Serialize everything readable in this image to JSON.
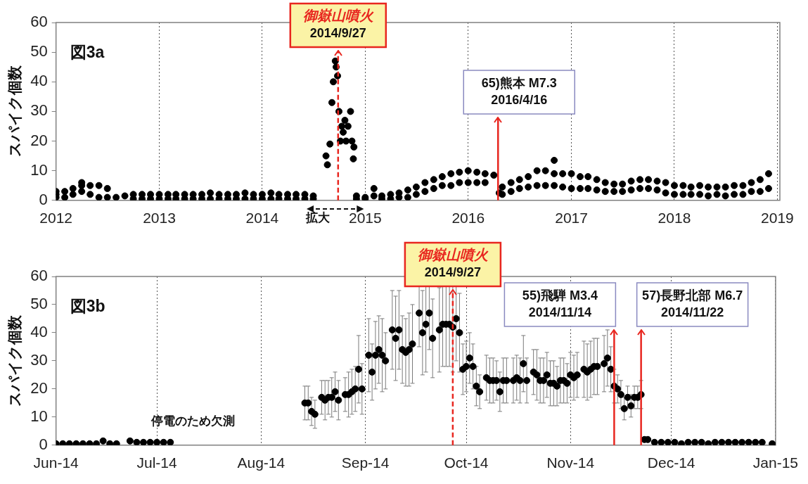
{
  "chart_data": [
    {
      "type": "scatter",
      "title": "図3a",
      "ylabel": "スパイク個数",
      "marker": "circle",
      "grid": "x",
      "xlim": [
        "2012-01-01",
        "2019-01-10"
      ],
      "xticks": [
        {
          "value": "2012-01-01",
          "label": "2012"
        },
        {
          "value": "2013-01-01",
          "label": "2013"
        },
        {
          "value": "2014-01-01",
          "label": "2014"
        },
        {
          "value": "2015-01-01",
          "label": "2015"
        },
        {
          "value": "2016-01-01",
          "label": "2016"
        },
        {
          "value": "2017-01-01",
          "label": "2017"
        },
        {
          "value": "2018-01-01",
          "label": "2018"
        },
        {
          "value": "2019-01-01",
          "label": "2019"
        }
      ],
      "ylim": [
        0,
        60
      ],
      "yticks": [
        0,
        10,
        20,
        30,
        40,
        50,
        60
      ],
      "series": [
        {
          "color": "#000000",
          "x": [
            "2012-01",
            "2012-01",
            "2012-01",
            "2012-02",
            "2012-02",
            "2012-03",
            "2012-03",
            "2012-04",
            "2012-04",
            "2012-04",
            "2012-05",
            "2012-05",
            "2012-06",
            "2012-06",
            "2012-07",
            "2012-07",
            "2012-08",
            "2012-09",
            "2012-10",
            "2012-10",
            "2012-11",
            "2012-11",
            "2012-12",
            "2012-12",
            "2013-01",
            "2013-01",
            "2013-02",
            "2013-02",
            "2013-03",
            "2013-03",
            "2013-04",
            "2013-04",
            "2013-05",
            "2013-05",
            "2013-06",
            "2013-06",
            "2013-07",
            "2013-07",
            "2013-08",
            "2013-08",
            "2013-09",
            "2013-09",
            "2013-10",
            "2013-10",
            "2013-11",
            "2013-11",
            "2013-12",
            "2013-12",
            "2014-01",
            "2014-01",
            "2014-02",
            "2014-02",
            "2014-03",
            "2014-03",
            "2014-04",
            "2014-04",
            "2014-05",
            "2014-05",
            "2014-06",
            "2014-06",
            "2014-07",
            "2014-07",
            "2014-08-15",
            "2014-08-20",
            "2014-08-29",
            "2014-09-05",
            "2014-09-10",
            "2014-09-17",
            "2014-09-20",
            "2014-09-25",
            "2014-09-30",
            "2014-10-05",
            "2014-10-10",
            "2014-10-15",
            "2014-10-21",
            "2014-10-25",
            "2014-11-01",
            "2014-11-10",
            "2014-11-15",
            "2014-11-20",
            "2014-11-22",
            "2014-12",
            "2014-12",
            "2015-01",
            "2015-01",
            "2015-02",
            "2015-02",
            "2015-03",
            "2015-03",
            "2015-04",
            "2015-04",
            "2015-05",
            "2015-05",
            "2015-06",
            "2015-06",
            "2015-07",
            "2015-07",
            "2015-08",
            "2015-08",
            "2015-09",
            "2015-09",
            "2015-10",
            "2015-10",
            "2015-11",
            "2015-11",
            "2015-12",
            "2015-12",
            "2016-01",
            "2016-01",
            "2016-02",
            "2016-02",
            "2016-03",
            "2016-03",
            "2016-04",
            "2016-04-20",
            "2016-05",
            "2016-05",
            "2016-06",
            "2016-06",
            "2016-07",
            "2016-07",
            "2016-08",
            "2016-08",
            "2016-09",
            "2016-09",
            "2016-10",
            "2016-10",
            "2016-11",
            "2016-11",
            "2016-11",
            "2016-12",
            "2016-12",
            "2017-01",
            "2017-01",
            "2017-02",
            "2017-02",
            "2017-03",
            "2017-03",
            "2017-04",
            "2017-04",
            "2017-05",
            "2017-05",
            "2017-06",
            "2017-06",
            "2017-07",
            "2017-07",
            "2017-08",
            "2017-08",
            "2017-09",
            "2017-09",
            "2017-10",
            "2017-10",
            "2017-11",
            "2017-11",
            "2017-12",
            "2017-12",
            "2018-01",
            "2018-01",
            "2018-02",
            "2018-02",
            "2018-03",
            "2018-03",
            "2018-04",
            "2018-04",
            "2018-05",
            "2018-05",
            "2018-06",
            "2018-06",
            "2018-07",
            "2018-07",
            "2018-08",
            "2018-08",
            "2018-09",
            "2018-09",
            "2018-10",
            "2018-10",
            "2018-11",
            "2018-11",
            "2018-12",
            "2018-12"
          ],
          "values": [
            2,
            1,
            3,
            3,
            1,
            4,
            2,
            6,
            3,
            5,
            5,
            2,
            5,
            1,
            4,
            1,
            1,
            1.5,
            2,
            0.5,
            2,
            0.5,
            2,
            0.5,
            2,
            0.5,
            2,
            0.5,
            2,
            0.5,
            2,
            0.5,
            2,
            0.5,
            2,
            0.5,
            2.5,
            0.5,
            2,
            0.5,
            2,
            0.5,
            2,
            0.5,
            2.5,
            0.5,
            2,
            0.5,
            2,
            0.5,
            2.5,
            0.5,
            2,
            0.5,
            2,
            0.5,
            2,
            0.5,
            2,
            0.5,
            1.5,
            0.5,
            15,
            12,
            19,
            33,
            40,
            47,
            45,
            42,
            30,
            20,
            25,
            23,
            27,
            20,
            25,
            30,
            20,
            14,
            18,
            1.5,
            0.5,
            1,
            0.5,
            1.5,
            4,
            1.5,
            0.5,
            2,
            0.5,
            2.5,
            1,
            3.5,
            1,
            4.5,
            2,
            6,
            3,
            7,
            4,
            8,
            5,
            9,
            5,
            9.5,
            6,
            10,
            6,
            9.5,
            6,
            9,
            6,
            8.5,
            2.5,
            4.5,
            2,
            6,
            3,
            7,
            4,
            8,
            4.5,
            10,
            5,
            10,
            5,
            13.5,
            9,
            5,
            9,
            4.5,
            9,
            4,
            8,
            4,
            8,
            4,
            7,
            3.5,
            6,
            3,
            5.5,
            3,
            5.5,
            3,
            6.5,
            3.5,
            7,
            4,
            7,
            4,
            6.5,
            3.5,
            6,
            2.5,
            5,
            2,
            5,
            2,
            4.5,
            2,
            5,
            2,
            4.5,
            1.5,
            4.5,
            2,
            4.5,
            1.5,
            5,
            2,
            5,
            2,
            6,
            3,
            7,
            3,
            9,
            4
          ]
        }
      ],
      "ref_lines": [
        {
          "axis": "x",
          "value": "2014-09-27",
          "label": "御嶽山噴火\n2014/9/27",
          "color": "#e8261f",
          "line_style": "dashed"
        },
        {
          "axis": "x",
          "value": "2016-04-16",
          "label": "65)熊本 M7.3\n2016/4/16",
          "color": "#e8261f",
          "line_style": "solid"
        }
      ],
      "annotations": [
        "拡大"
      ]
    },
    {
      "type": "scatter",
      "title": "図3b",
      "ylabel": "スパイク個数",
      "marker": "circle",
      "grid": "x",
      "xlim": [
        "2014-06-01",
        "2015-01-01"
      ],
      "xticks": [
        {
          "value": "2014-06-01",
          "label": "Jun-14"
        },
        {
          "value": "2014-07-01",
          "label": "Jul-14"
        },
        {
          "value": "2014-08-01",
          "label": "Aug-14"
        },
        {
          "value": "2014-09-01",
          "label": "Sep-14"
        },
        {
          "value": "2014-10-01",
          "label": "Oct-14"
        },
        {
          "value": "2014-11-01",
          "label": "Nov-14"
        },
        {
          "value": "2014-12-01",
          "label": "Dec-14"
        },
        {
          "value": "2015-01-01",
          "label": "Jan-15"
        }
      ],
      "ylim": [
        0,
        60
      ],
      "yticks": [
        0,
        10,
        20,
        30,
        40,
        50,
        60
      ],
      "series": [
        {
          "color": "#000000",
          "x": [
            "2014-06-01",
            "2014-06-03",
            "2014-06-05",
            "2014-06-07",
            "2014-06-09",
            "2014-06-11",
            "2014-06-13",
            "2014-06-15",
            "2014-06-17",
            "2014-06-19",
            "2014-06-23",
            "2014-06-25",
            "2014-06-27",
            "2014-06-29",
            "2014-07-01",
            "2014-07-03",
            "2014-07-05",
            "2014-08-14",
            "2014-08-15",
            "2014-08-16",
            "2014-08-17",
            "2014-08-19",
            "2014-08-20",
            "2014-08-21",
            "2014-08-22",
            "2014-08-23",
            "2014-08-24",
            "2014-08-26",
            "2014-08-27",
            "2014-08-28",
            "2014-08-29",
            "2014-08-30",
            "2014-08-31",
            "2014-09-02",
            "2014-09-03",
            "2014-09-04",
            "2014-09-05",
            "2014-09-06",
            "2014-09-07",
            "2014-09-09",
            "2014-09-10",
            "2014-09-11",
            "2014-09-12",
            "2014-09-13",
            "2014-09-14",
            "2014-09-15",
            "2014-09-17",
            "2014-09-18",
            "2014-09-19",
            "2014-09-20",
            "2014-09-21",
            "2014-09-23",
            "2014-09-24",
            "2014-09-25",
            "2014-09-26",
            "2014-09-27",
            "2014-09-28",
            "2014-09-29",
            "2014-09-30",
            "2014-10-01",
            "2014-10-02",
            "2014-10-03",
            "2014-10-04",
            "2014-10-05",
            "2014-10-07",
            "2014-10-08",
            "2014-10-09",
            "2014-10-10",
            "2014-10-11",
            "2014-10-12",
            "2014-10-13",
            "2014-10-15",
            "2014-10-16",
            "2014-10-17",
            "2014-10-18",
            "2014-10-19",
            "2014-10-21",
            "2014-10-22",
            "2014-10-23",
            "2014-10-24",
            "2014-10-25",
            "2014-10-26",
            "2014-10-27",
            "2014-10-28",
            "2014-10-29",
            "2014-10-30",
            "2014-10-31",
            "2014-11-01",
            "2014-11-02",
            "2014-11-03",
            "2014-11-05",
            "2014-11-06",
            "2014-11-07",
            "2014-11-08",
            "2014-11-09",
            "2014-11-11",
            "2014-11-12",
            "2014-11-13",
            "2014-11-14",
            "2014-11-15",
            "2014-11-16",
            "2014-11-17",
            "2014-11-18",
            "2014-11-19",
            "2014-11-20",
            "2014-11-21",
            "2014-11-22",
            "2014-11-23",
            "2014-11-24",
            "2014-11-26",
            "2014-11-28",
            "2014-11-30",
            "2014-12-02",
            "2014-12-04",
            "2014-12-06",
            "2014-12-08",
            "2014-12-10",
            "2014-12-12",
            "2014-12-14",
            "2014-12-16",
            "2014-12-18",
            "2014-12-20",
            "2014-12-22",
            "2014-12-24",
            "2014-12-26",
            "2014-12-28",
            "2014-12-31"
          ],
          "values": [
            0.5,
            0.5,
            0.5,
            0.5,
            0.5,
            0.5,
            0.5,
            1.5,
            0.5,
            0.5,
            1.5,
            1,
            1,
            1,
            1,
            1,
            1,
            15,
            15,
            12,
            11,
            17,
            16,
            17,
            17,
            19,
            16,
            18,
            18,
            19,
            20,
            27,
            20,
            32,
            26,
            32,
            34,
            32,
            30,
            41,
            38,
            41,
            34,
            33,
            34,
            36,
            47,
            40,
            43,
            47,
            38,
            41,
            43,
            43,
            43,
            42,
            45,
            40,
            27,
            28,
            31,
            28,
            21,
            19,
            24,
            23,
            23,
            23,
            19,
            23,
            23,
            23,
            24,
            23,
            29,
            23,
            26,
            25,
            23,
            23,
            25,
            22,
            22,
            21,
            23,
            23,
            22,
            25,
            24,
            25,
            27,
            26,
            27,
            28,
            28,
            29,
            31,
            27,
            21,
            20,
            18,
            13,
            17,
            14,
            17,
            17,
            18,
            2,
            2,
            1,
            1,
            1,
            1,
            0.5,
            1,
            1,
            1,
            0.5,
            1,
            1,
            1,
            1,
            1,
            1,
            1,
            1,
            0.5
          ],
          "errors": [
            null,
            null,
            null,
            null,
            null,
            null,
            null,
            null,
            null,
            null,
            null,
            null,
            null,
            null,
            null,
            null,
            null,
            6,
            6,
            5,
            5,
            6,
            7,
            6,
            7,
            7,
            7,
            6,
            8,
            8,
            8,
            12,
            9,
            13,
            10,
            12,
            12,
            13,
            10,
            14,
            15,
            14,
            12,
            12,
            13,
            14,
            12,
            15,
            17,
            13,
            14,
            15,
            15,
            15,
            15,
            16,
            15,
            14,
            9,
            9,
            9,
            8,
            7,
            6,
            8,
            8,
            8,
            7,
            7,
            8,
            8,
            8,
            8,
            8,
            10,
            8,
            8,
            9,
            8,
            8,
            8,
            8,
            8,
            7,
            8,
            8,
            7,
            8,
            8,
            8,
            10,
            10,
            10,
            10,
            10,
            10,
            10,
            8,
            6,
            5,
            5,
            4,
            4,
            4,
            4,
            4,
            5,
            null,
            null,
            null,
            null,
            null,
            null,
            null,
            null,
            null,
            null,
            null,
            null,
            null,
            null,
            null,
            null,
            null,
            null,
            null,
            null
          ]
        }
      ],
      "ref_lines": [
        {
          "axis": "x",
          "value": "2014-09-27",
          "label": "御嶽山噴火\n2014/9/27",
          "color": "#e8261f",
          "line_style": "dashed"
        },
        {
          "axis": "x",
          "value": "2014-11-14",
          "label": "55)飛騨 M3.4\n2014/11/14",
          "color": "#e8261f",
          "line_style": "solid"
        },
        {
          "axis": "x",
          "value": "2014-11-22",
          "label": "57)長野北部 M6.7\n2014/11/22",
          "color": "#e8261f",
          "line_style": "solid"
        }
      ],
      "annotations": [
        "停電のため欠測"
      ]
    }
  ]
}
